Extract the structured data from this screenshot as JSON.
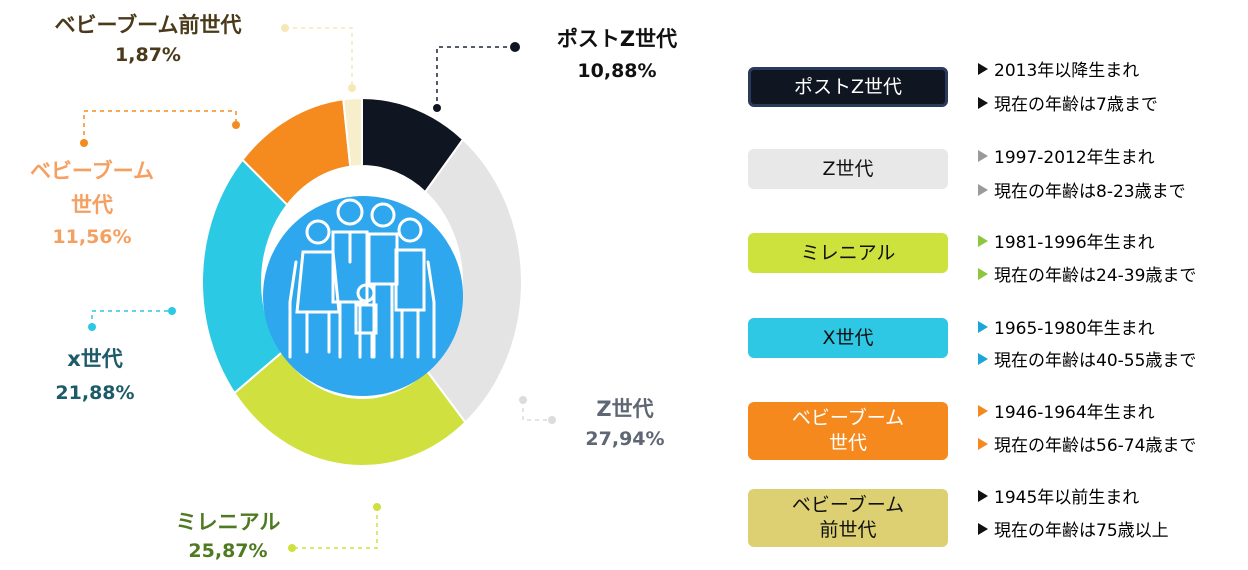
{
  "chart_data": {
    "type": "donut",
    "categories": [
      "ポストZ世代",
      "Z世代",
      "ミレニアル",
      "x世代",
      "ベビーブーム\n世代",
      "ベビーブーム前世代"
    ],
    "values": [
      10.88,
      27.94,
      25.87,
      21.88,
      11.56,
      1.87
    ],
    "value_labels": [
      "10,88%",
      "27,94%",
      "25,87%",
      "21,88%",
      "11,56%",
      "1,87%"
    ],
    "colors": [
      "#0f1521",
      "#e4e4e4",
      "#cfe03f",
      "#2bc9e3",
      "#f58b1f",
      "#f7eecb"
    ],
    "label_colors": [
      "#111111",
      "#5f6774",
      "#4e7a22",
      "#1d5b68",
      "#f5a060",
      "#4a3a1a"
    ]
  },
  "legend": [
    {
      "label": "ポストZ世代",
      "color": "#0f1521",
      "text_color": "#ffffff",
      "marker_color": "#111111",
      "lines": [
        "2013年以降生まれ",
        "現在の年齢は7歳まで"
      ]
    },
    {
      "label": "Z世代",
      "color": "#e8e8e8",
      "text_color": "#111111",
      "marker_color": "#9a9a9a",
      "lines": [
        "1997-2012年生まれ",
        "現在の年齢は8-23歳まで"
      ]
    },
    {
      "label": "ミレニアル",
      "color": "#cde23c",
      "text_color": "#111111",
      "marker_color": "#8cc63f",
      "lines": [
        "1981-1996年生まれ",
        "現在の年齢は24-39歳まで"
      ]
    },
    {
      "label": "X世代",
      "color": "#2ec8e4",
      "text_color": "#111111",
      "marker_color": "#1aa7d8",
      "lines": [
        "1965-1980年生まれ",
        "現在の年齢は40-55歳まで"
      ]
    },
    {
      "label": "ベビーブーム\n世代",
      "color": "#f5891e",
      "text_color": "#ffffff",
      "marker_color": "#f5891e",
      "lines": [
        "1946-1964年生まれ",
        "現在の年齢は56-74歳まで"
      ]
    },
    {
      "label": "ベビーブーム\n前世代",
      "color": "#ddd072",
      "text_color": "#111111",
      "marker_color": "#111111",
      "lines": [
        "1945年以前生まれ",
        "現在の年齢は75歳以上"
      ]
    }
  ]
}
